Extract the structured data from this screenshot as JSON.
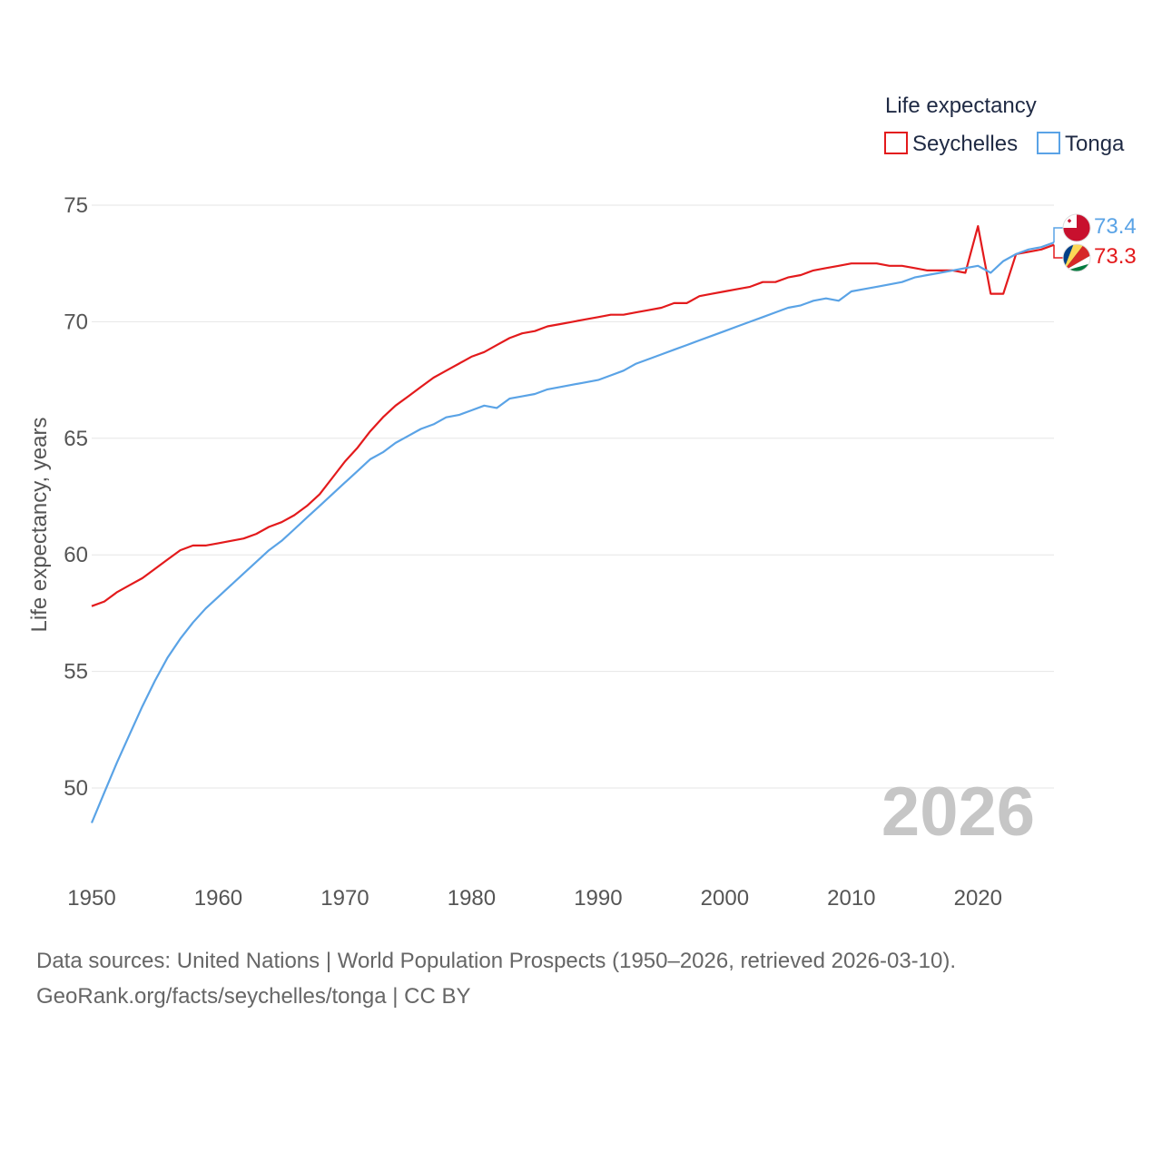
{
  "chart_data": {
    "type": "line",
    "title": "Life expectancy",
    "xlabel": "",
    "ylabel": "Life expectancy, years",
    "xlim": [
      1950,
      2026
    ],
    "ylim": [
      47,
      76
    ],
    "x_ticks": [
      1950,
      1960,
      1970,
      1980,
      1990,
      2000,
      2010,
      2020
    ],
    "y_ticks": [
      50,
      55,
      60,
      65,
      70,
      75
    ],
    "grid": true,
    "legend_position": "top-right",
    "current_year_label": "2026",
    "series": [
      {
        "name": "Seychelles",
        "color": "#e31a1c",
        "end_label": "73.3",
        "points": [
          [
            1950,
            57.8
          ],
          [
            1951,
            58.0
          ],
          [
            1952,
            58.4
          ],
          [
            1953,
            58.7
          ],
          [
            1954,
            59.0
          ],
          [
            1955,
            59.4
          ],
          [
            1956,
            59.8
          ],
          [
            1957,
            60.2
          ],
          [
            1958,
            60.4
          ],
          [
            1959,
            60.4
          ],
          [
            1960,
            60.5
          ],
          [
            1961,
            60.6
          ],
          [
            1962,
            60.7
          ],
          [
            1963,
            60.9
          ],
          [
            1964,
            61.2
          ],
          [
            1965,
            61.4
          ],
          [
            1966,
            61.7
          ],
          [
            1967,
            62.1
          ],
          [
            1968,
            62.6
          ],
          [
            1969,
            63.3
          ],
          [
            1970,
            64.0
          ],
          [
            1971,
            64.6
          ],
          [
            1972,
            65.3
          ],
          [
            1973,
            65.9
          ],
          [
            1974,
            66.4
          ],
          [
            1975,
            66.8
          ],
          [
            1976,
            67.2
          ],
          [
            1977,
            67.6
          ],
          [
            1978,
            67.9
          ],
          [
            1979,
            68.2
          ],
          [
            1980,
            68.5
          ],
          [
            1981,
            68.7
          ],
          [
            1982,
            69.0
          ],
          [
            1983,
            69.3
          ],
          [
            1984,
            69.5
          ],
          [
            1985,
            69.6
          ],
          [
            1986,
            69.8
          ],
          [
            1987,
            69.9
          ],
          [
            1988,
            70.0
          ],
          [
            1989,
            70.1
          ],
          [
            1990,
            70.2
          ],
          [
            1991,
            70.3
          ],
          [
            1992,
            70.3
          ],
          [
            1993,
            70.4
          ],
          [
            1994,
            70.5
          ],
          [
            1995,
            70.6
          ],
          [
            1996,
            70.8
          ],
          [
            1997,
            70.8
          ],
          [
            1998,
            71.1
          ],
          [
            1999,
            71.2
          ],
          [
            2000,
            71.3
          ],
          [
            2001,
            71.4
          ],
          [
            2002,
            71.5
          ],
          [
            2003,
            71.7
          ],
          [
            2004,
            71.7
          ],
          [
            2005,
            71.9
          ],
          [
            2006,
            72.0
          ],
          [
            2007,
            72.2
          ],
          [
            2008,
            72.3
          ],
          [
            2009,
            72.4
          ],
          [
            2010,
            72.5
          ],
          [
            2011,
            72.5
          ],
          [
            2012,
            72.5
          ],
          [
            2013,
            72.4
          ],
          [
            2014,
            72.4
          ],
          [
            2015,
            72.3
          ],
          [
            2016,
            72.2
          ],
          [
            2017,
            72.2
          ],
          [
            2018,
            72.2
          ],
          [
            2019,
            72.1
          ],
          [
            2020,
            74.1
          ],
          [
            2021,
            71.2
          ],
          [
            2022,
            71.2
          ],
          [
            2023,
            72.9
          ],
          [
            2024,
            73.0
          ],
          [
            2025,
            73.1
          ],
          [
            2026,
            73.3
          ]
        ]
      },
      {
        "name": "Tonga",
        "color": "#5aa3e6",
        "end_label": "73.4",
        "points": [
          [
            1950,
            48.5
          ],
          [
            1951,
            49.8
          ],
          [
            1952,
            51.1
          ],
          [
            1953,
            52.3
          ],
          [
            1954,
            53.5
          ],
          [
            1955,
            54.6
          ],
          [
            1956,
            55.6
          ],
          [
            1957,
            56.4
          ],
          [
            1958,
            57.1
          ],
          [
            1959,
            57.7
          ],
          [
            1960,
            58.2
          ],
          [
            1961,
            58.7
          ],
          [
            1962,
            59.2
          ],
          [
            1963,
            59.7
          ],
          [
            1964,
            60.2
          ],
          [
            1965,
            60.6
          ],
          [
            1966,
            61.1
          ],
          [
            1967,
            61.6
          ],
          [
            1968,
            62.1
          ],
          [
            1969,
            62.6
          ],
          [
            1970,
            63.1
          ],
          [
            1971,
            63.6
          ],
          [
            1972,
            64.1
          ],
          [
            1973,
            64.4
          ],
          [
            1974,
            64.8
          ],
          [
            1975,
            65.1
          ],
          [
            1976,
            65.4
          ],
          [
            1977,
            65.6
          ],
          [
            1978,
            65.9
          ],
          [
            1979,
            66.0
          ],
          [
            1980,
            66.2
          ],
          [
            1981,
            66.4
          ],
          [
            1982,
            66.3
          ],
          [
            1983,
            66.7
          ],
          [
            1984,
            66.8
          ],
          [
            1985,
            66.9
          ],
          [
            1986,
            67.1
          ],
          [
            1987,
            67.2
          ],
          [
            1988,
            67.3
          ],
          [
            1989,
            67.4
          ],
          [
            1990,
            67.5
          ],
          [
            1991,
            67.7
          ],
          [
            1992,
            67.9
          ],
          [
            1993,
            68.2
          ],
          [
            1994,
            68.4
          ],
          [
            1995,
            68.6
          ],
          [
            1996,
            68.8
          ],
          [
            1997,
            69.0
          ],
          [
            1998,
            69.2
          ],
          [
            1999,
            69.4
          ],
          [
            2000,
            69.6
          ],
          [
            2001,
            69.8
          ],
          [
            2002,
            70.0
          ],
          [
            2003,
            70.2
          ],
          [
            2004,
            70.4
          ],
          [
            2005,
            70.6
          ],
          [
            2006,
            70.7
          ],
          [
            2007,
            70.9
          ],
          [
            2008,
            71.0
          ],
          [
            2009,
            70.9
          ],
          [
            2010,
            71.3
          ],
          [
            2011,
            71.4
          ],
          [
            2012,
            71.5
          ],
          [
            2013,
            71.6
          ],
          [
            2014,
            71.7
          ],
          [
            2015,
            71.9
          ],
          [
            2016,
            72.0
          ],
          [
            2017,
            72.1
          ],
          [
            2018,
            72.2
          ],
          [
            2019,
            72.3
          ],
          [
            2020,
            72.4
          ],
          [
            2021,
            72.1
          ],
          [
            2022,
            72.6
          ],
          [
            2023,
            72.9
          ],
          [
            2024,
            73.1
          ],
          [
            2025,
            73.2
          ],
          [
            2026,
            73.4
          ]
        ]
      }
    ]
  },
  "footer": {
    "line1": "Data sources: United Nations | World Population Prospects (1950–2026, retrieved 2026-03-10).",
    "line2": "GeoRank.org/facts/seychelles/tonga | CC BY"
  },
  "icons": {
    "tonga_flag": "tonga-flag-icon",
    "seychelles_flag": "seychelles-flag-icon"
  }
}
